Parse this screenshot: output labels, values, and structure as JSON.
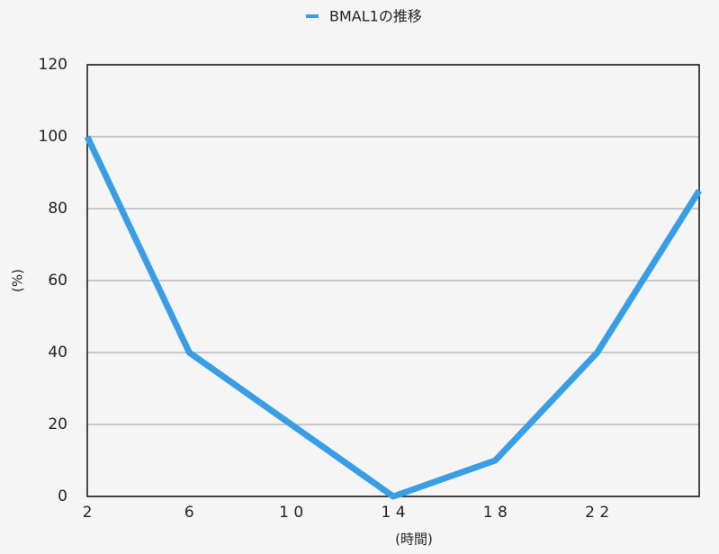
{
  "chart_data": {
    "type": "line",
    "categories": [
      "2",
      "6",
      "1 0",
      "1 4",
      "1 8",
      "2 2",
      null
    ],
    "series": [
      {
        "name": "BMAL1の推移",
        "color": "#3a9ee6",
        "values": [
          100,
          40,
          20,
          0,
          10,
          40,
          85
        ]
      }
    ],
    "ylim": [
      0,
      120
    ],
    "yticks": [
      0,
      20,
      40,
      60,
      80,
      100,
      120
    ],
    "ylabel": "(%)",
    "xlabel": "(時間)",
    "grid": true,
    "legend": "top"
  }
}
